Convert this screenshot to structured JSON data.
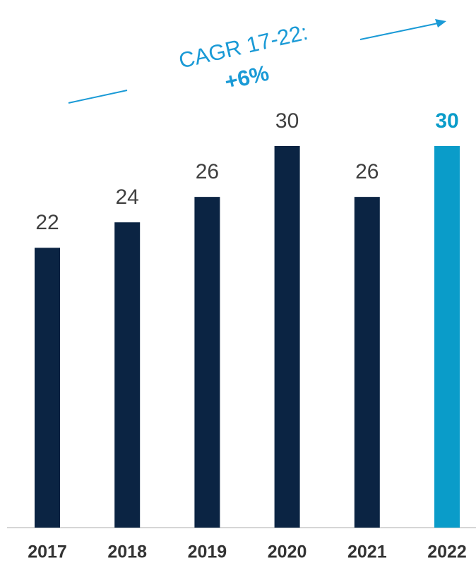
{
  "chart_data": {
    "type": "bar",
    "annotation": {
      "title": "CAGR 17-22:",
      "value": "+6%",
      "color": "#1a9ad6"
    },
    "categories": [
      "2017",
      "2018",
      "2019",
      "2020",
      "2021",
      "2022"
    ],
    "values": [
      22,
      24,
      26,
      30,
      26,
      30
    ],
    "colors": [
      "#0b2443",
      "#0b2443",
      "#0b2443",
      "#0b2443",
      "#0b2443",
      "#0a9cc9"
    ]
  }
}
